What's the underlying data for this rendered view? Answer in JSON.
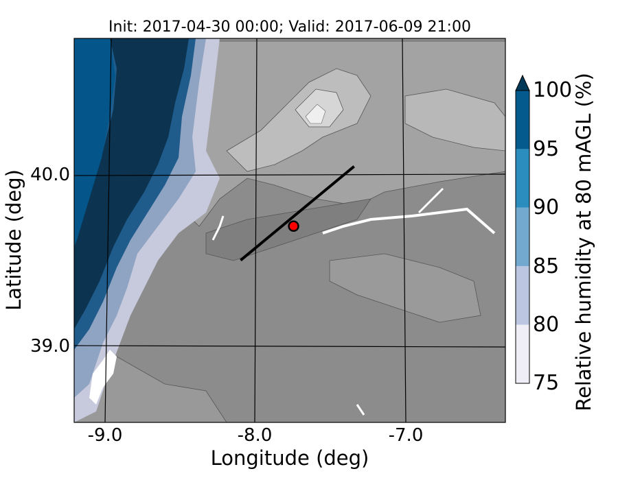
{
  "title": "Init: 2017-04-30 00:00; Valid: 2017-06-09 21:00",
  "xlabel": "Longitude (deg)",
  "ylabel": "Latitude (deg)",
  "x_ticks": [
    "-9.0",
    "-8.0",
    "-7.0"
  ],
  "y_ticks": [
    "40.0",
    "39.0"
  ],
  "colorbar": {
    "label": "Relative humidity at 80 mAGL (%)",
    "ticks": [
      "75",
      "80",
      "85",
      "90",
      "95",
      "100"
    ],
    "extend": "max",
    "colors": [
      "#efedf5",
      "#bcc6e0",
      "#74a9cf",
      "#2b8cbe",
      "#045a8d",
      "#023858"
    ]
  },
  "map": {
    "extent_lon": [
      -9.2,
      -6.35
    ],
    "extent_lat": [
      38.55,
      40.8
    ],
    "background_shading": "grey terrain contours",
    "cross_section_line": {
      "start": [
        -8.1,
        39.5
      ],
      "end": [
        -7.35,
        40.05
      ],
      "color": "#000000"
    },
    "marker": {
      "lon": -7.75,
      "lat": 39.7,
      "color": "#ff0000"
    }
  }
}
